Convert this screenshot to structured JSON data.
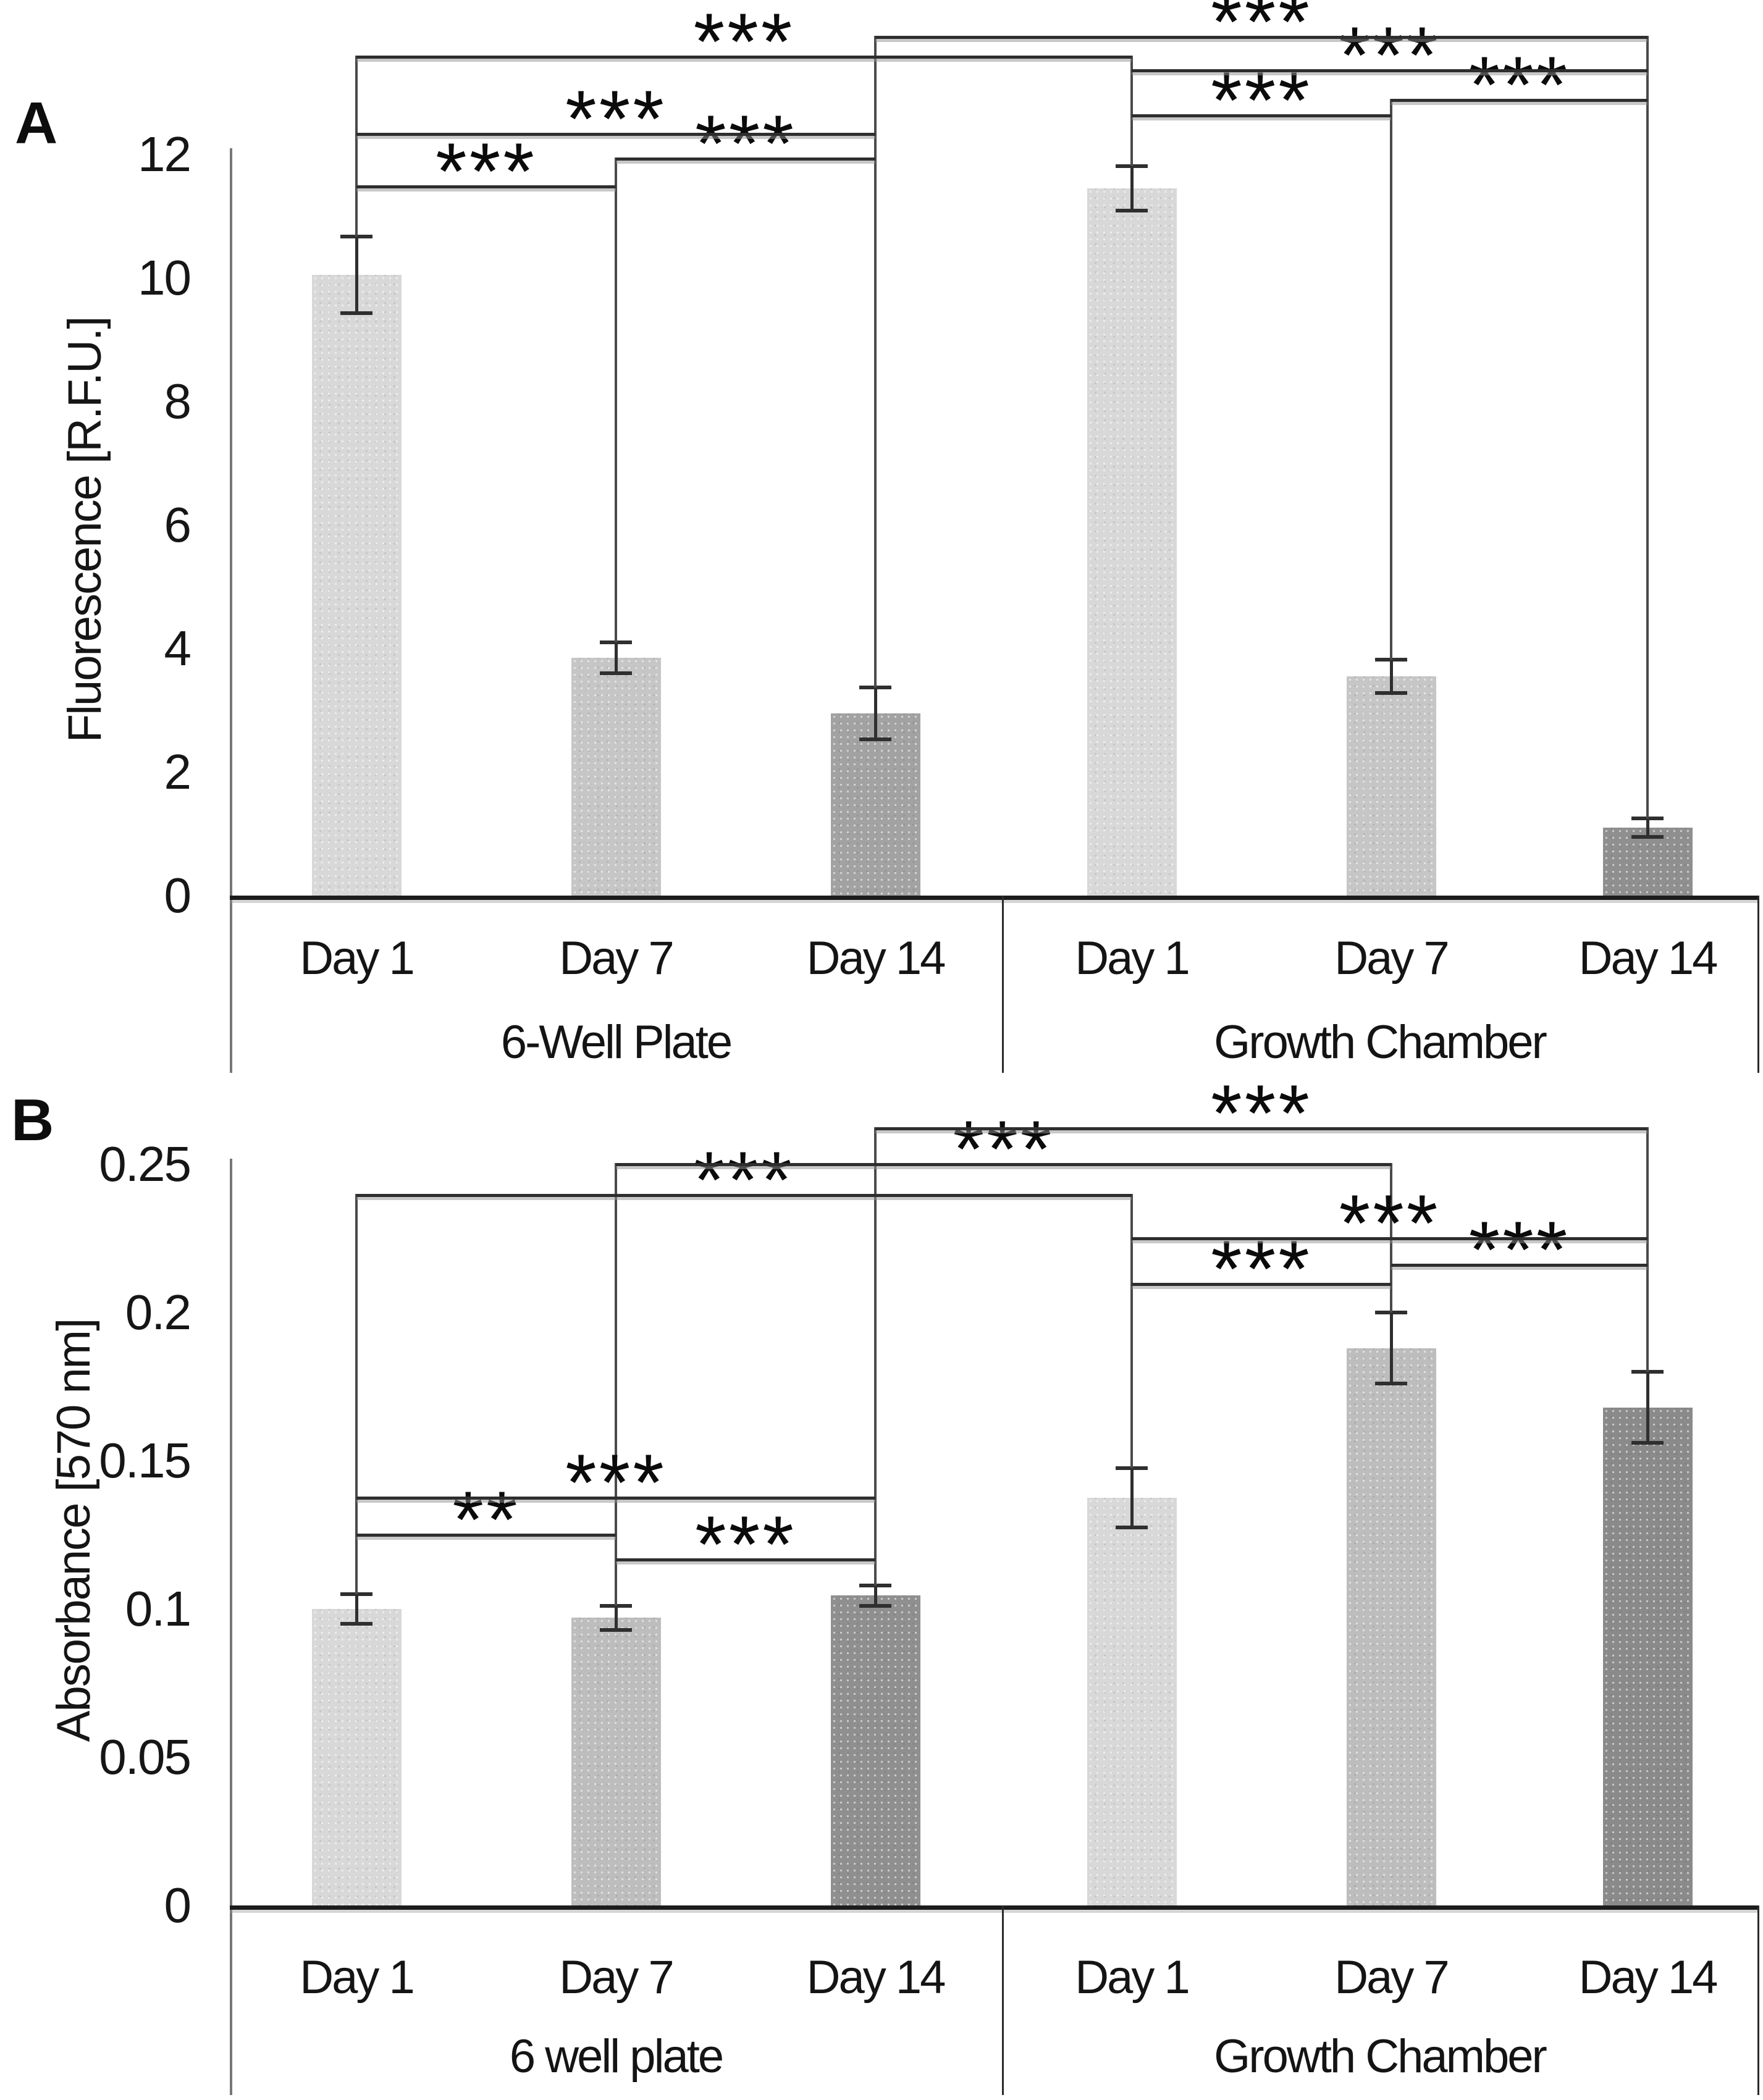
{
  "figure_type": "two-panel grouped bar chart with significance brackets",
  "chart_data": [
    {
      "type": "bar",
      "panel_label": "A",
      "title": "",
      "xlabel": "",
      "ylabel": "Fluorescence [R.F.U.]",
      "ylim": [
        0,
        12
      ],
      "yticks": [
        12,
        10,
        8,
        6,
        4,
        2,
        0
      ],
      "ytick_labels": [
        "12",
        "10",
        "8",
        "6",
        "4",
        "2",
        "0"
      ],
      "grid": false,
      "legend": "none",
      "group_labels": [
        "6-Well Plate",
        "Growth Chamber"
      ],
      "categories": [
        "Day 1",
        "Day 7",
        "Day 14",
        "Day 1",
        "Day 7",
        "Day 14"
      ],
      "series": [
        {
          "name": "Fluorescence",
          "values": [
            10.05,
            3.85,
            2.95,
            11.45,
            3.55,
            1.1
          ]
        }
      ],
      "error_bars": [
        0.62,
        0.25,
        0.42,
        0.36,
        0.27,
        0.15
      ],
      "bar_colors": [
        "#d8d8d8",
        "#c6c6c6",
        "#a2a2a2",
        "#d8d8d8",
        "#c6c6c6",
        "#8f8f8f"
      ],
      "significance_brackets": [
        {
          "bar_a": 0,
          "bar_b": 1,
          "label": "***",
          "height": 11.5
        },
        {
          "bar_a": 1,
          "bar_b": 2,
          "label": "***",
          "height": 11.95
        },
        {
          "bar_a": 0,
          "bar_b": 2,
          "label": "***",
          "height": 12.35
        },
        {
          "bar_a": 3,
          "bar_b": 4,
          "label": "***",
          "height": 12.65
        },
        {
          "bar_a": 4,
          "bar_b": 5,
          "label": "***",
          "height": 12.9
        },
        {
          "bar_a": 3,
          "bar_b": 5,
          "label": "***",
          "height": 13.38
        },
        {
          "bar_a": 0,
          "bar_b": 3,
          "label": "***",
          "height": 13.6
        },
        {
          "bar_a": 2,
          "bar_b": 5,
          "label": "***",
          "height": 13.92
        }
      ]
    },
    {
      "type": "bar",
      "panel_label": "B",
      "title": "",
      "xlabel": "",
      "ylabel": "Absorbance [570 nm]",
      "ylim": [
        0,
        0.25
      ],
      "yticks": [
        0.25,
        0.2,
        0.15,
        0.1,
        0.05,
        0
      ],
      "ytick_labels": [
        "0.25",
        "0.2",
        "0.15",
        "0.1",
        "0.05",
        "0"
      ],
      "grid": false,
      "legend": "none",
      "group_labels": [
        "6 well plate",
        "Growth Chamber"
      ],
      "categories": [
        "Day 1",
        "Day 7",
        "Day 14",
        "Day 1",
        "Day 7",
        "Day 14"
      ],
      "series": [
        {
          "name": "Absorbance",
          "values": [
            0.1,
            0.097,
            0.1045,
            0.1375,
            0.188,
            0.168
          ]
        }
      ],
      "error_bars": [
        0.005,
        0.004,
        0.0035,
        0.01,
        0.012,
        0.012
      ],
      "bar_colors": [
        "#d8d8d8",
        "#bdbdbd",
        "#8f8f8f",
        "#d8d8d8",
        "#bdbdbd",
        "#8a8a8a"
      ],
      "significance_brackets": [
        {
          "bar_a": 1,
          "bar_b": 2,
          "label": "***",
          "height": 0.117
        },
        {
          "bar_a": 0,
          "bar_b": 1,
          "label": "**",
          "height": 0.1255
        },
        {
          "bar_a": 0,
          "bar_b": 2,
          "label": "***",
          "height": 0.138
        },
        {
          "bar_a": 3,
          "bar_b": 4,
          "label": "***",
          "height": 0.21
        },
        {
          "bar_a": 4,
          "bar_b": 5,
          "label": "***",
          "height": 0.2165
        },
        {
          "bar_a": 3,
          "bar_b": 5,
          "label": "***",
          "height": 0.2255
        },
        {
          "bar_a": 0,
          "bar_b": 3,
          "label": "***",
          "height": 0.24
        },
        {
          "bar_a": 1,
          "bar_b": 4,
          "label": "***",
          "height": 0.2505
        },
        {
          "bar_a": 2,
          "bar_b": 5,
          "label": "***",
          "height": 0.2625
        }
      ]
    }
  ]
}
